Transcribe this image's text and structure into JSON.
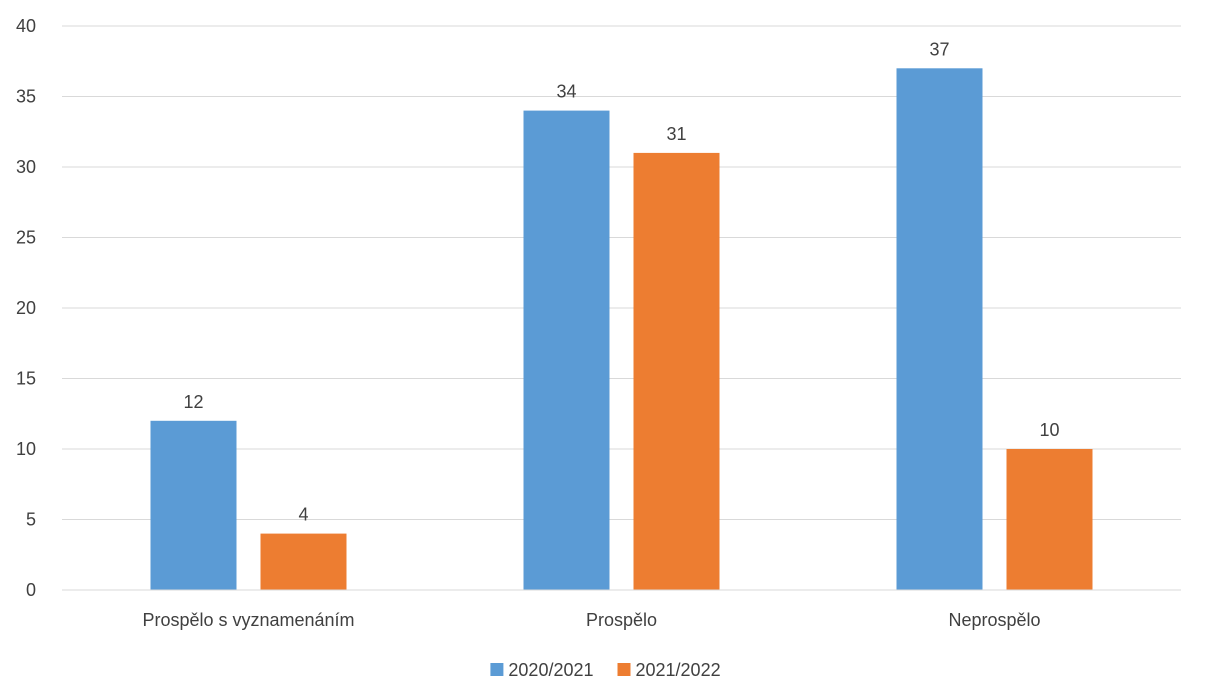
{
  "chart_data": {
    "type": "bar",
    "title": "",
    "xlabel": "",
    "ylabel": "",
    "categories": [
      "Prospělo s vyznamenáním",
      "Prospělo",
      "Neprospělo"
    ],
    "series": [
      {
        "name": "2020/2021",
        "values": [
          12,
          34,
          37
        ],
        "color": "#5B9BD5"
      },
      {
        "name": "2021/2022",
        "values": [
          4,
          31,
          10
        ],
        "color": "#ED7D31"
      }
    ],
    "ylim": [
      0,
      40
    ],
    "yticks": [
      0,
      5,
      10,
      15,
      20,
      25,
      30,
      35,
      40
    ],
    "grid": true,
    "gridColor": "#D9D9D9",
    "legend": "bottom-center",
    "data_labels": true
  }
}
